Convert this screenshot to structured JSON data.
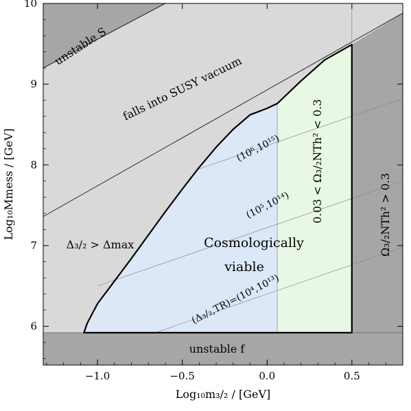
{
  "chart_data": {
    "type": "area",
    "xlabel": "Log₁₀m₃/₂ / [GeV]",
    "ylabel": "Log₁₀Mmess / [GeV]",
    "xlim": [
      -1.32,
      0.8
    ],
    "ylim": [
      5.52,
      10.0
    ],
    "x_ticks": [
      "−1.0",
      "−0.5",
      "0.0",
      "0.5"
    ],
    "x_tick_values": [
      -1.0,
      -0.5,
      0.0,
      0.5
    ],
    "y_ticks": [
      "6",
      "7",
      "8",
      "9",
      "10"
    ],
    "y_tick_values": [
      6,
      7,
      8,
      9,
      10
    ],
    "grid": false,
    "colors": {
      "excluded_light": "#d9d9d9",
      "excluded_dark": "#a6a6a6",
      "viable_blue": "#dce8f8",
      "viable_green": "#e8f8e4",
      "boundary": "#000000",
      "contour": "#888888"
    },
    "regions": [
      {
        "label": "unstable S",
        "shade": "dark"
      },
      {
        "label": "falls into SUSY vacuum",
        "shade": "light"
      },
      {
        "label": "Δ₃/₂ > Δmax",
        "shade": "light"
      },
      {
        "label": "Ω₃/₂NTh² > 0.3",
        "shade": "dark"
      },
      {
        "label": "unstable f",
        "shade": "dark"
      },
      {
        "label": "0.03 < Ω₃/₂NTh² < 0.3",
        "shade": "green"
      },
      {
        "label": "Cosmologically viable",
        "shade": "blue"
      }
    ],
    "viable_boundary": [
      [
        -1.08,
        5.92
      ],
      [
        -1.06,
        6.04
      ],
      [
        -1.0,
        6.28
      ],
      [
        -0.9,
        6.56
      ],
      [
        -0.8,
        6.84
      ],
      [
        -0.7,
        7.13
      ],
      [
        -0.6,
        7.42
      ],
      [
        -0.5,
        7.7
      ],
      [
        -0.4,
        7.97
      ],
      [
        -0.3,
        8.22
      ],
      [
        -0.2,
        8.44
      ],
      [
        -0.1,
        8.62
      ],
      [
        0.0,
        8.7
      ],
      [
        0.06,
        8.76
      ],
      [
        0.2,
        9.04
      ],
      [
        0.34,
        9.3
      ],
      [
        0.5,
        9.49
      ],
      [
        0.5,
        5.92
      ]
    ],
    "blue_green_divider_x": 0.06,
    "unstable_f_ymax": 5.92,
    "susy_vacuum_line": [
      [
        -1.32,
        7.36
      ],
      [
        0.8,
        9.88
      ]
    ],
    "unstable_S_line": [
      [
        -1.32,
        9.2
      ],
      [
        -0.6,
        10.0
      ]
    ],
    "contours": [
      {
        "label": "(Δ₃/₂,TR)=(10⁴,10¹³)",
        "points": [
          [
            -0.66,
            5.92
          ],
          [
            0.8,
            6.98
          ]
        ]
      },
      {
        "label": "(10⁵,10¹⁴)",
        "points": [
          [
            -1.0,
            6.5
          ],
          [
            0.8,
            7.8
          ]
        ]
      },
      {
        "label": "(10⁶,10¹⁵)",
        "points": [
          [
            -0.4,
            7.95
          ],
          [
            0.8,
            8.82
          ]
        ]
      }
    ]
  }
}
